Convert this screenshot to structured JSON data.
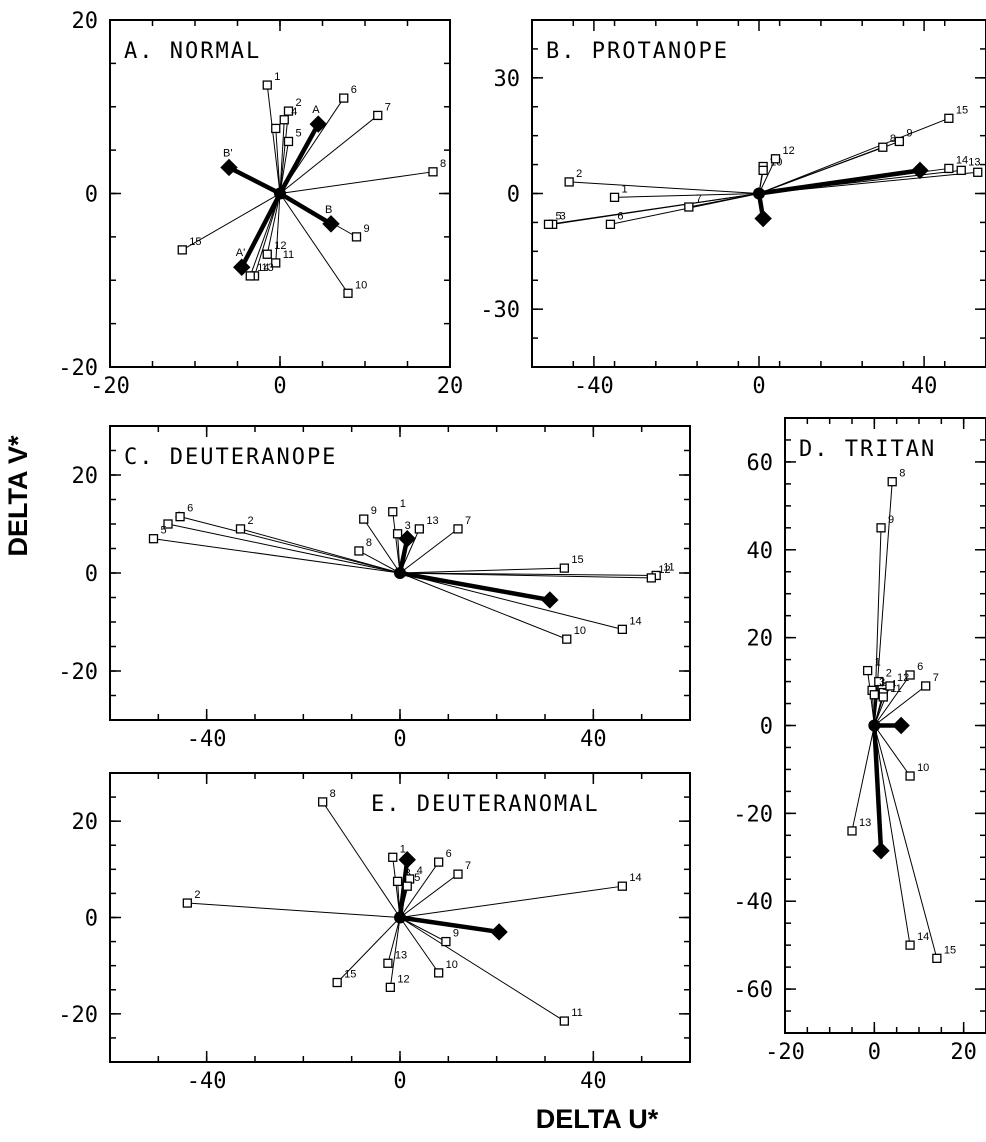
{
  "figure": {
    "xlabel": "DELTA U*",
    "ylabel": "DELTA V*"
  },
  "chart_data": [
    {
      "type": "scatter",
      "title": "A. NORMAL",
      "xlim": [
        -20,
        20
      ],
      "ylim": [
        -20,
        20
      ],
      "xticks": [
        -20,
        0,
        20
      ],
      "yticks": [
        -20,
        0,
        20
      ],
      "caps": [
        {
          "label": "1",
          "u": -1.5,
          "v": 12.5
        },
        {
          "label": "2",
          "u": 1,
          "v": 9.5
        },
        {
          "label": "3",
          "u": -0.5,
          "v": 7.5
        },
        {
          "label": "4",
          "u": 0.5,
          "v": 8.5
        },
        {
          "label": "5",
          "u": 1,
          "v": 6
        },
        {
          "label": "6",
          "u": 7.5,
          "v": 11
        },
        {
          "label": "7",
          "u": 11.5,
          "v": 9
        },
        {
          "label": "8",
          "u": 18,
          "v": 2.5
        },
        {
          "label": "9",
          "u": 9,
          "v": -5
        },
        {
          "label": "10",
          "u": 8,
          "v": -11.5
        },
        {
          "label": "11",
          "u": -0.5,
          "v": -8
        },
        {
          "label": "12",
          "u": -1.5,
          "v": -7
        },
        {
          "label": "13",
          "u": -3,
          "v": -9.5
        },
        {
          "label": "14",
          "u": -3.5,
          "v": -9.5
        },
        {
          "label": "15",
          "u": -11.5,
          "v": -6.5
        }
      ],
      "means": [
        {
          "label": "A",
          "u": 4.5,
          "v": 8
        },
        {
          "label": "B",
          "u": 6,
          "v": -3.5
        },
        {
          "label": "A'",
          "u": -4.5,
          "v": -8.5
        },
        {
          "label": "B'",
          "u": -6,
          "v": 3
        }
      ]
    },
    {
      "type": "scatter",
      "title": "B. PROTANOPE",
      "xlim": [
        -55,
        55
      ],
      "ylim": [
        -45,
        45
      ],
      "xticks": [
        -40,
        0,
        40
      ],
      "yticks": [
        -30,
        0,
        30
      ],
      "caps": [
        {
          "label": "1",
          "u": -35,
          "v": -1
        },
        {
          "label": "2",
          "u": -46,
          "v": 3
        },
        {
          "label": "3",
          "u": -50,
          "v": -8
        },
        {
          "label": "4",
          "u": 1,
          "v": 7
        },
        {
          "label": "5",
          "u": -51,
          "v": -8
        },
        {
          "label": "6",
          "u": -36,
          "v": -8
        },
        {
          "label": "7",
          "u": -17,
          "v": -3.5
        },
        {
          "label": "8",
          "u": 30,
          "v": 12
        },
        {
          "label": "9",
          "u": 34,
          "v": 13.5
        },
        {
          "label": "10",
          "u": 1,
          "v": 6
        },
        {
          "label": "11",
          "u": 53,
          "v": 5.5
        },
        {
          "label": "12",
          "u": 4,
          "v": 9
        },
        {
          "label": "13",
          "u": 49,
          "v": 6
        },
        {
          "label": "14",
          "u": 46,
          "v": 6.5
        },
        {
          "label": "15",
          "u": 46,
          "v": 19.5
        }
      ],
      "means": [
        {
          "label": "",
          "u": 39,
          "v": 6
        },
        {
          "label": "",
          "u": 1,
          "v": -6.5
        }
      ]
    },
    {
      "type": "scatter",
      "title": "C. DEUTERANOPE",
      "xlim": [
        -60,
        60
      ],
      "ylim": [
        -30,
        30
      ],
      "xticks": [
        -40,
        0,
        40
      ],
      "yticks": [
        -20,
        0,
        20
      ],
      "caps": [
        {
          "label": "1",
          "u": -1.5,
          "v": 12.5
        },
        {
          "label": "2",
          "u": -33,
          "v": 9
        },
        {
          "label": "3",
          "u": -0.5,
          "v": 8
        },
        {
          "label": "4",
          "u": -48,
          "v": 10
        },
        {
          "label": "5",
          "u": -51,
          "v": 7
        },
        {
          "label": "6",
          "u": -45.5,
          "v": 11.5
        },
        {
          "label": "7",
          "u": 12,
          "v": 9
        },
        {
          "label": "8",
          "u": -8.5,
          "v": 4.5
        },
        {
          "label": "9",
          "u": -7.5,
          "v": 11
        },
        {
          "label": "10",
          "u": 34.5,
          "v": -13.5
        },
        {
          "label": "11",
          "u": 53,
          "v": -0.5
        },
        {
          "label": "12",
          "u": 52,
          "v": -1
        },
        {
          "label": "13",
          "u": 4,
          "v": 9
        },
        {
          "label": "14",
          "u": 46,
          "v": -11.5
        },
        {
          "label": "15",
          "u": 34,
          "v": 1
        }
      ],
      "means": [
        {
          "label": "",
          "u": 31,
          "v": -5.5
        },
        {
          "label": "",
          "u": 1.5,
          "v": 7
        }
      ]
    },
    {
      "type": "scatter",
      "title": "D. TRITAN",
      "xlim": [
        -20,
        25
      ],
      "ylim": [
        -70,
        70
      ],
      "xticks": [
        -20,
        0,
        20
      ],
      "yticks": [
        -60,
        -40,
        -20,
        0,
        20,
        40,
        60
      ],
      "caps": [
        {
          "label": "1",
          "u": -1.5,
          "v": 12.5
        },
        {
          "label": "2",
          "u": 1,
          "v": 10
        },
        {
          "label": "3",
          "u": -0.5,
          "v": 8
        },
        {
          "label": "4",
          "u": 2,
          "v": 7.5
        },
        {
          "label": "5",
          "u": 0,
          "v": 7
        },
        {
          "label": "6",
          "u": 8,
          "v": 11.5
        },
        {
          "label": "7",
          "u": 11.5,
          "v": 9
        },
        {
          "label": "8",
          "u": 4,
          "v": 55.5
        },
        {
          "label": "9",
          "u": 1.5,
          "v": 45
        },
        {
          "label": "10",
          "u": 8,
          "v": -11.5
        },
        {
          "label": "11",
          "u": 2,
          "v": 6.5
        },
        {
          "label": "12",
          "u": 3.5,
          "v": 9
        },
        {
          "label": "13",
          "u": -5,
          "v": -24
        },
        {
          "label": "14",
          "u": 8,
          "v": -50
        },
        {
          "label": "15",
          "u": 14,
          "v": -53
        }
      ],
      "means": [
        {
          "label": "",
          "u": 6,
          "v": 0
        },
        {
          "label": "",
          "u": 1.5,
          "v": -28.5
        }
      ]
    },
    {
      "type": "scatter",
      "title": "E. DEUTERANOMAL",
      "xlim": [
        -60,
        60
      ],
      "ylim": [
        -30,
        30
      ],
      "xticks": [
        -40,
        0,
        40
      ],
      "yticks": [
        -20,
        0,
        20
      ],
      "caps": [
        {
          "label": "1",
          "u": -1.5,
          "v": 12.5
        },
        {
          "label": "2",
          "u": -44,
          "v": 3
        },
        {
          "label": "3",
          "u": -0.5,
          "v": 7.5
        },
        {
          "label": "4",
          "u": 2,
          "v": 8
        },
        {
          "label": "5",
          "u": 1.5,
          "v": 6.5
        },
        {
          "label": "6",
          "u": 8,
          "v": 11.5
        },
        {
          "label": "7",
          "u": 12,
          "v": 9
        },
        {
          "label": "8",
          "u": -16,
          "v": 24
        },
        {
          "label": "9",
          "u": 9.5,
          "v": -5
        },
        {
          "label": "10",
          "u": 8,
          "v": -11.5
        },
        {
          "label": "11",
          "u": 34,
          "v": -21.5
        },
        {
          "label": "12",
          "u": -2,
          "v": -14.5
        },
        {
          "label": "13",
          "u": -2.5,
          "v": -9.5
        },
        {
          "label": "14",
          "u": 46,
          "v": 6.5
        },
        {
          "label": "15",
          "u": -13,
          "v": -13.5
        }
      ],
      "means": [
        {
          "label": "",
          "u": 20.5,
          "v": -3
        },
        {
          "label": "",
          "u": 1.5,
          "v": 12
        }
      ]
    }
  ]
}
